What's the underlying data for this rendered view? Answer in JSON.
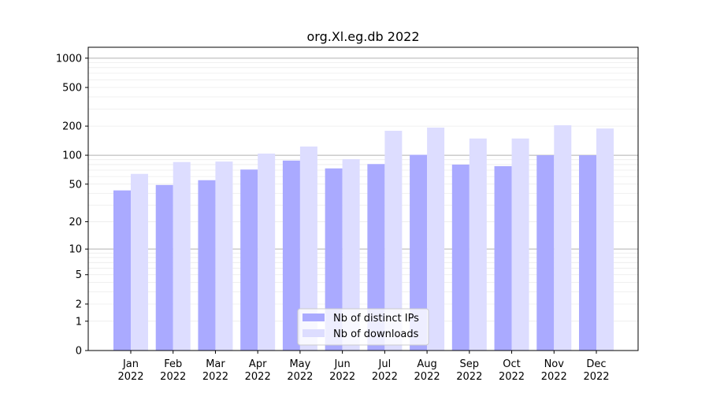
{
  "chart_data": {
    "type": "bar",
    "title": "org.Xl.eg.db 2022",
    "xlabel": "",
    "ylabel": "",
    "yscale": "log10(y+1)",
    "ylim": [
      0,
      1300
    ],
    "yticks": [
      0,
      1,
      2,
      5,
      10,
      20,
      50,
      100,
      200,
      500,
      1000
    ],
    "categories": [
      "Jan",
      "Feb",
      "Mar",
      "Apr",
      "May",
      "Jun",
      "Jul",
      "Aug",
      "Sep",
      "Oct",
      "Nov",
      "Dec"
    ],
    "category_sublabel": "2022",
    "series": [
      {
        "name": "Nb of distinct IPs",
        "color": "#aaaaff",
        "values": [
          43,
          49,
          55,
          71,
          88,
          73,
          81,
          101,
          80,
          77,
          100,
          100
        ]
      },
      {
        "name": "Nb of downloads",
        "color": "#ddddff",
        "values": [
          64,
          85,
          86,
          104,
          123,
          91,
          179,
          193,
          149,
          149,
          204,
          189
        ]
      }
    ],
    "grid": true,
    "legend": "bottom-center"
  }
}
